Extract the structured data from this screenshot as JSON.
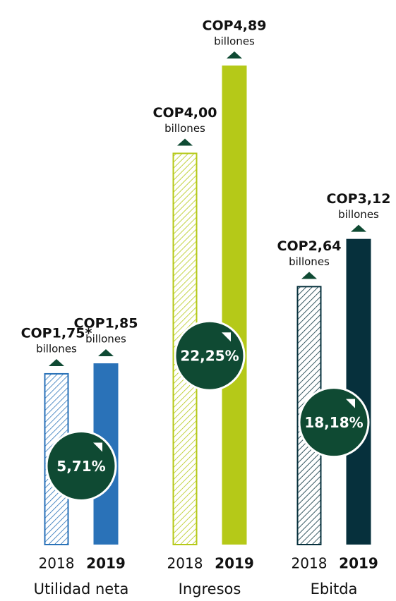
{
  "chart_data": {
    "type": "bar",
    "categories": [
      "Utilidad neta",
      "Ingresos",
      "Ebitda"
    ],
    "colors": [
      "#2a72b8",
      "#b5c918",
      "#06303c"
    ],
    "series": [
      {
        "name": "2018",
        "hatched": true,
        "values": [
          1.75,
          4.0,
          2.64
        ],
        "value_labels": [
          "COP1,75*",
          "COP4,00",
          "COP2,64"
        ]
      },
      {
        "name": "2019",
        "hatched": false,
        "values": [
          1.85,
          4.89,
          3.12
        ],
        "value_labels": [
          "COP1,85",
          "COP4,89",
          "COP3,12"
        ]
      }
    ],
    "unit_label": "billones",
    "annotations": [
      "5,71%",
      "22,25%",
      "18,18%"
    ],
    "ylim": [
      0,
      5.4
    ]
  }
}
